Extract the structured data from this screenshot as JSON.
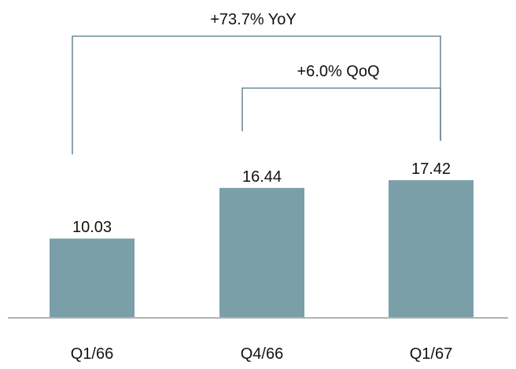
{
  "chart_data": {
    "type": "bar",
    "categories": [
      "Q1/66",
      "Q4/66",
      "Q1/67"
    ],
    "values": [
      10.03,
      16.44,
      17.42
    ],
    "value_labels": [
      "10.03",
      "16.44",
      "17.42"
    ],
    "title": "",
    "xlabel": "",
    "ylabel": "",
    "ylim": [
      0,
      17.42
    ],
    "grid": false,
    "legend": "none",
    "annotations": [
      {
        "text": "+73.7% YoY",
        "from": "Q1/66",
        "to": "Q1/67"
      },
      {
        "text": "+6.0% QoQ",
        "from": "Q4/66",
        "to": "Q1/67"
      }
    ]
  },
  "colors": {
    "bar": "#7b9fa9",
    "axis": "#b3b3b3",
    "bracket": "#6d8e99",
    "text": "#111111"
  }
}
